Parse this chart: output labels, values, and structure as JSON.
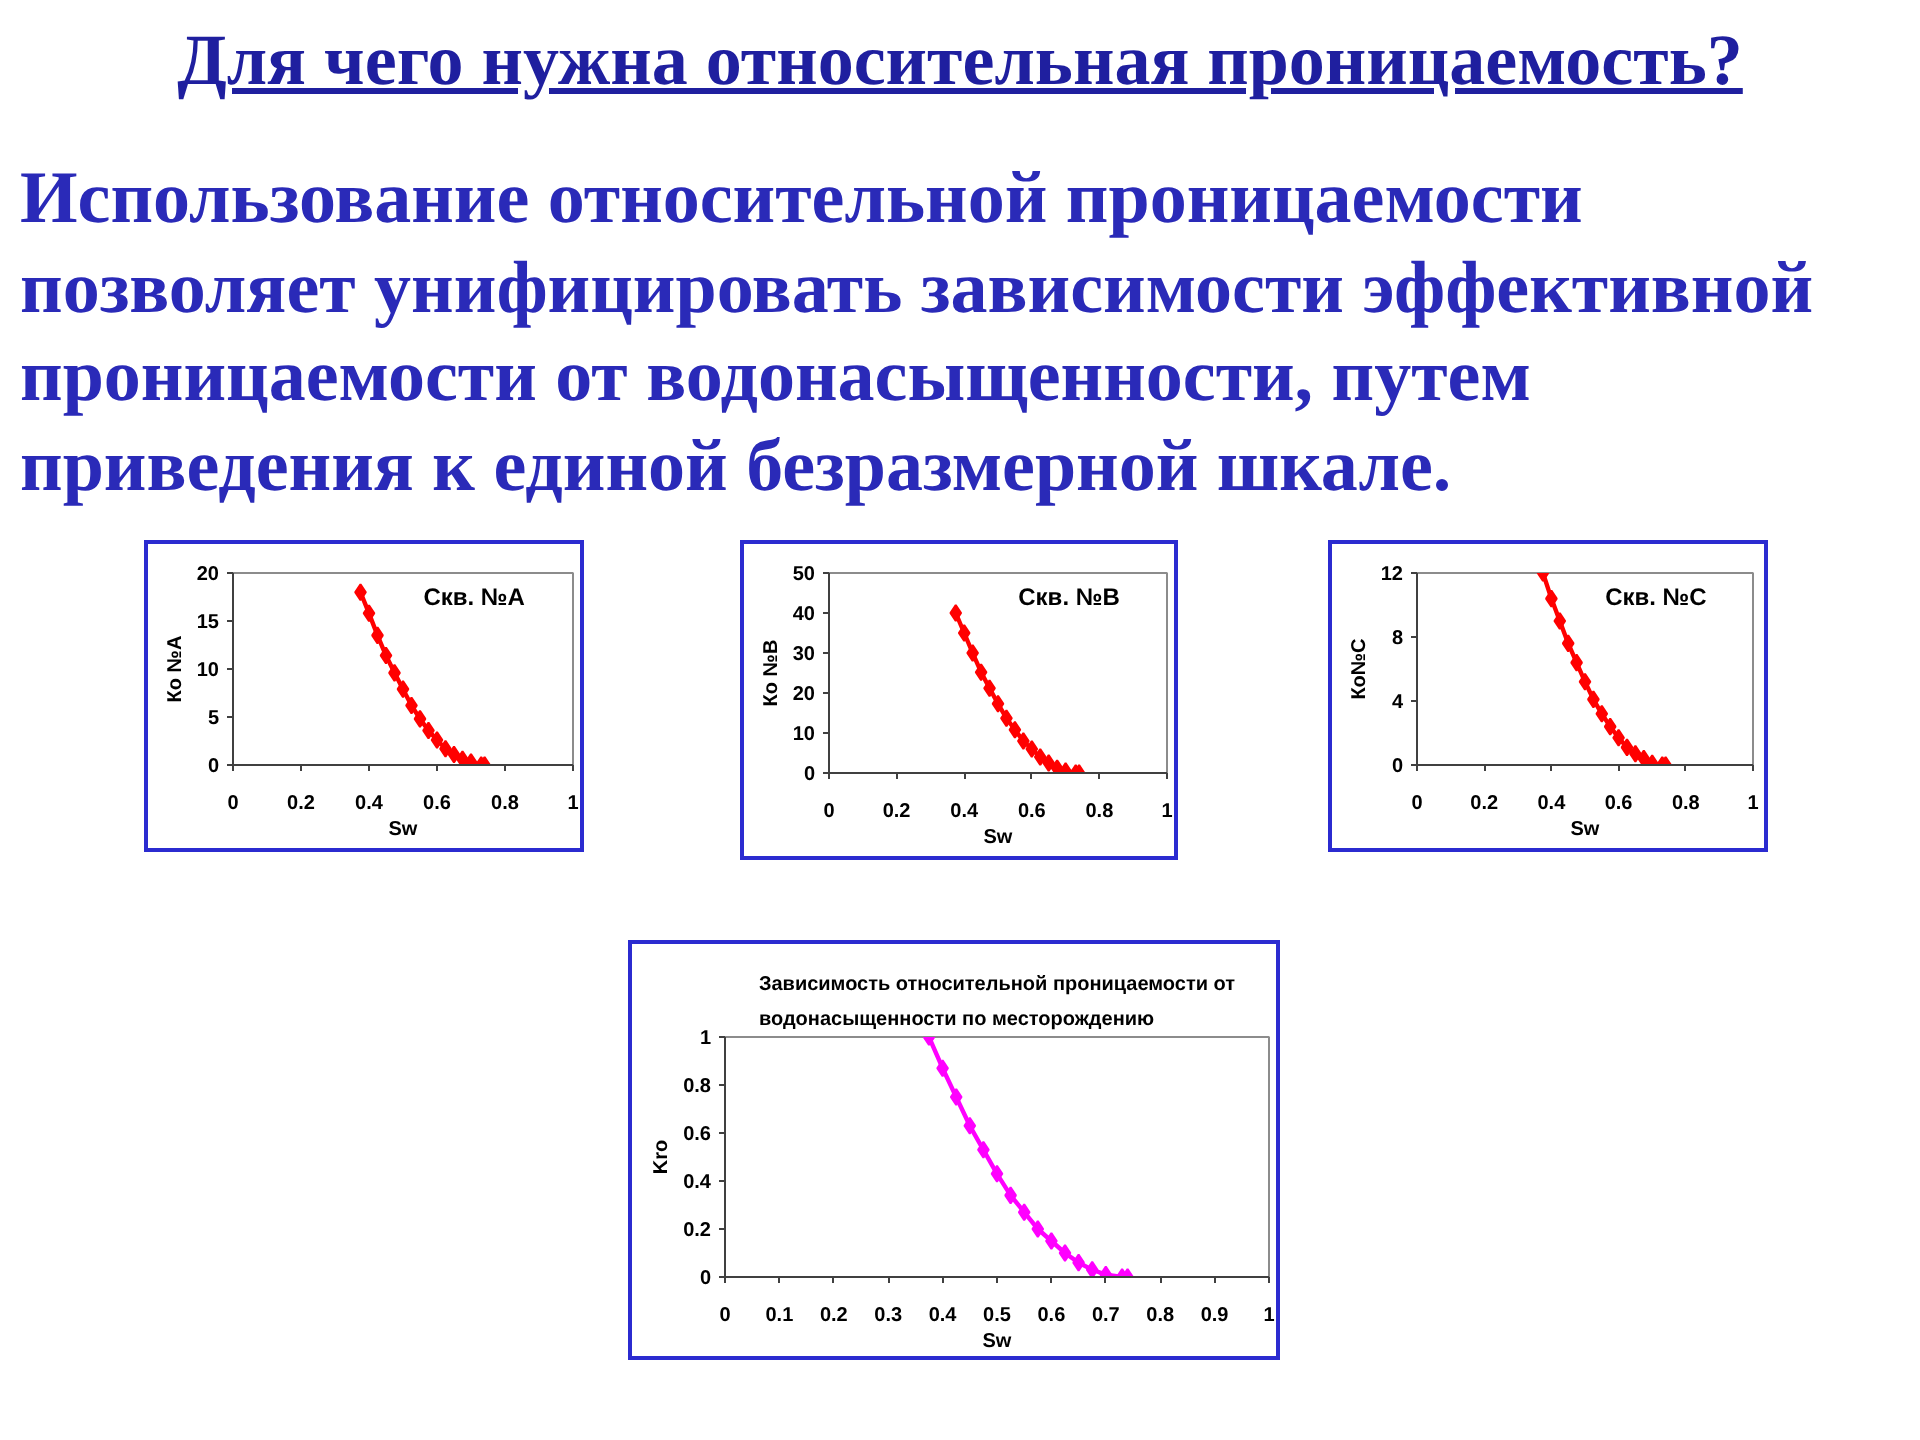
{
  "chart_data": [
    {
      "type": "line",
      "title": "Для чего нужна относительная проницаемость?",
      "subtitle": "Использование относительной проницаемости позволяет унифицировать зависимости эффективной проницаемости от водонасыщенности, путем приведения к единой безразмерной шкале.",
      "xlabel": "Sw",
      "ylabel": "Ко №А",
      "annotations": [
        "Скв. №А"
      ],
      "x": [
        0.375,
        0.4,
        0.425,
        0.45,
        0.475,
        0.5,
        0.525,
        0.55,
        0.575,
        0.6,
        0.625,
        0.65,
        0.675,
        0.7,
        0.73,
        0.74
      ],
      "series": [
        {
          "color": "#ff0000",
          "values": [
            18,
            15.8,
            13.5,
            11.4,
            9.6,
            7.9,
            6.2,
            4.8,
            3.6,
            2.6,
            1.7,
            1.1,
            0.6,
            0.3,
            0,
            0
          ]
        }
      ],
      "xlim": [
        0,
        1
      ],
      "xticks": [
        0,
        0.2,
        0.4,
        0.6,
        0.8,
        1
      ],
      "ylim": [
        0,
        20
      ],
      "yticks": [
        0,
        5,
        10,
        15,
        20
      ],
      "grid": false,
      "marker": "diamond",
      "line_style": "solid"
    },
    {
      "type": "line",
      "xlabel": "Sw",
      "ylabel": "Ко №В",
      "annotations": [
        "Скв. №В"
      ],
      "x": [
        0.375,
        0.4,
        0.425,
        0.45,
        0.475,
        0.5,
        0.525,
        0.55,
        0.575,
        0.6,
        0.625,
        0.65,
        0.675,
        0.7,
        0.73,
        0.74
      ],
      "series": [
        {
          "color": "#ff0000",
          "values": [
            40,
            35,
            30,
            25.2,
            21.2,
            17.3,
            13.7,
            10.8,
            8,
            6,
            4,
            2.5,
            1.2,
            0.5,
            0,
            0
          ]
        }
      ],
      "xlim": [
        0,
        1
      ],
      "xticks": [
        0,
        0.2,
        0.4,
        0.6,
        0.8,
        1
      ],
      "ylim": [
        0,
        50
      ],
      "yticks": [
        0,
        10,
        20,
        30,
        40,
        50
      ],
      "grid": false,
      "marker": "diamond",
      "line_style": "solid"
    },
    {
      "type": "line",
      "xlabel": "Sw",
      "ylabel": "Ко№С",
      "annotations": [
        "Скв. №С"
      ],
      "x": [
        0.375,
        0.4,
        0.425,
        0.45,
        0.475,
        0.5,
        0.525,
        0.55,
        0.575,
        0.6,
        0.625,
        0.65,
        0.675,
        0.7,
        0.73,
        0.74
      ],
      "series": [
        {
          "color": "#ff0000",
          "values": [
            12,
            10.4,
            9,
            7.6,
            6.4,
            5.2,
            4.1,
            3.2,
            2.4,
            1.7,
            1.1,
            0.7,
            0.4,
            0.1,
            0,
            0
          ]
        }
      ],
      "xlim": [
        0,
        1
      ],
      "xticks": [
        0,
        0.2,
        0.4,
        0.6,
        0.8,
        1
      ],
      "ylim": [
        0,
        12
      ],
      "yticks": [
        0,
        4,
        8,
        12
      ],
      "grid": false,
      "marker": "diamond",
      "line_style": "solid"
    },
    {
      "type": "line",
      "title": "Зависимость относительной проницаемости от водонасыщенности по месторождению",
      "xlabel": "Sw",
      "ylabel": "Kro",
      "x": [
        0.375,
        0.4,
        0.425,
        0.45,
        0.475,
        0.5,
        0.525,
        0.55,
        0.575,
        0.6,
        0.625,
        0.65,
        0.675,
        0.7,
        0.73,
        0.74
      ],
      "series": [
        {
          "color": "#ff00ff",
          "values": [
            1,
            0.87,
            0.75,
            0.63,
            0.53,
            0.43,
            0.34,
            0.27,
            0.2,
            0.15,
            0.1,
            0.06,
            0.03,
            0.01,
            0,
            0
          ]
        }
      ],
      "xlim": [
        0,
        1
      ],
      "xticks": [
        0,
        0.1,
        0.2,
        0.3,
        0.4,
        0.5,
        0.6,
        0.7,
        0.8,
        0.9,
        1
      ],
      "ylim": [
        0,
        1
      ],
      "yticks": [
        0,
        0.2,
        0.4,
        0.6,
        0.8,
        1
      ],
      "grid": false,
      "marker": "diamond",
      "line_style": "solid"
    }
  ]
}
